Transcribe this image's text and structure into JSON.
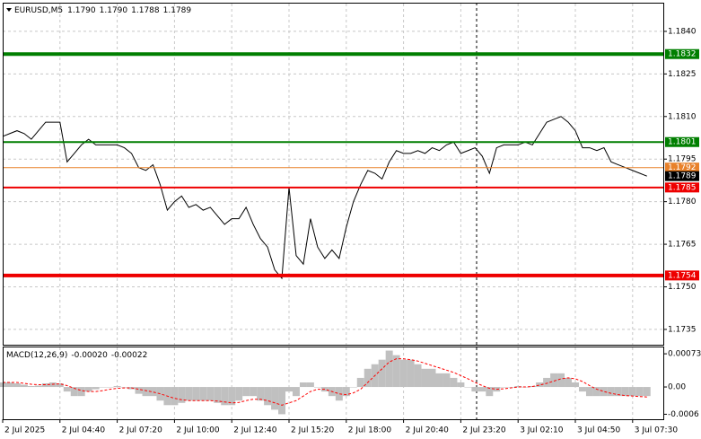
{
  "chart_data": [
    {
      "type": "line",
      "title": "EURUSD,M5",
      "ohlc": [
        "1.1790",
        "1.1790",
        "1.1788",
        "1.1789"
      ],
      "color": "#000000",
      "grid": true,
      "categories": [
        "2 Jul 2025",
        null,
        null,
        null,
        null,
        null,
        null,
        null,
        "2 Jul 04:40",
        null,
        null,
        null,
        null,
        null,
        null,
        null,
        "2 Jul 07:20",
        null,
        null,
        null,
        null,
        null,
        null,
        null,
        "2 Jul 10:00",
        null,
        null,
        null,
        null,
        null,
        null,
        null,
        "2 Jul 12:40",
        null,
        null,
        null,
        null,
        null,
        null,
        null,
        "2 Jul 15:20",
        null,
        null,
        null,
        null,
        null,
        null,
        null,
        "2 Jul 18:00",
        null,
        null,
        null,
        null,
        null,
        null,
        null,
        "2 Jul 20:40",
        null,
        null,
        null,
        null,
        null,
        null,
        null,
        "2 Jul 23:20",
        null,
        null,
        null,
        null,
        null,
        null,
        null,
        "3 Jul 02:10",
        null,
        null,
        null,
        null,
        null,
        null,
        null,
        "3 Jul 04:50",
        null,
        null,
        null,
        null,
        null,
        null,
        null,
        "3 Jul 07:30",
        null,
        null
      ],
      "values": [
        1.1803,
        1.1804,
        1.1805,
        1.1804,
        1.1802,
        1.1805,
        1.1808,
        1.1808,
        1.1808,
        1.1794,
        1.1797,
        1.18,
        1.1802,
        1.18,
        1.18,
        1.18,
        1.18,
        1.1799,
        1.1797,
        1.1792,
        1.1791,
        1.1793,
        1.1786,
        1.1777,
        1.178,
        1.1782,
        1.1778,
        1.1779,
        1.1777,
        1.1778,
        1.1775,
        1.1772,
        1.1774,
        1.1774,
        1.1778,
        1.1772,
        1.1767,
        1.1764,
        1.1756,
        1.1753,
        1.1785,
        1.1761,
        1.1758,
        1.1774,
        1.1764,
        1.176,
        1.1763,
        1.176,
        1.1771,
        1.178,
        1.1786,
        1.1791,
        1.179,
        1.1788,
        1.1794,
        1.1798,
        1.1797,
        1.1797,
        1.1798,
        1.1797,
        1.1799,
        1.1798,
        1.18,
        1.1801,
        1.1797,
        1.1798,
        1.1799,
        1.1796,
        1.179,
        1.1799,
        1.18,
        1.18,
        1.18,
        1.1801,
        1.18,
        1.1804,
        1.1808,
        1.1809,
        1.181,
        1.1808,
        1.1805,
        1.1799,
        1.1799,
        1.1798,
        1.1799,
        1.1794,
        1.1793,
        1.1792,
        1.1791,
        1.179,
        1.1789
      ],
      "ylim": [
        1.17296,
        1.18501
      ],
      "yticks": [
        {
          "value": 1.184,
          "label": "1.1840"
        },
        1.1825,
        {
          "value": 1.181,
          "label": "1.1810"
        },
        1.1795,
        {
          "value": 1.178,
          "label": "1.1780"
        },
        1.1765,
        {
          "value": 1.175,
          "label": "1.1750"
        },
        1.1735
      ],
      "levels": [
        {
          "value": 1.1832,
          "color": "#007f00",
          "style": "bold"
        },
        {
          "value": 1.1801,
          "color": "#007f00",
          "style": "normal"
        },
        {
          "value": 1.1792,
          "color": "#e8812a",
          "style": "thin"
        },
        {
          "value": 1.1785,
          "color": "#ee0000",
          "style": "normal"
        },
        {
          "value": 1.1754,
          "color": "#ee0000",
          "style": "bold"
        }
      ],
      "last_price": {
        "value": 1.1789,
        "color": "#000000"
      }
    },
    {
      "type": "macd",
      "title": "MACD(12,26,9)",
      "readout": [
        "-0.00020",
        "-0.00022"
      ],
      "histogram": {
        "color": "#c0c0c0",
        "values": [
          0.0001,
          0.0001,
          8e-05,
          5e-05,
          2e-05,
          3e-05,
          8e-05,
          0.0001,
          8e-05,
          -0.0001,
          -0.0002,
          -0.0002,
          -0.0001,
          -5e-05,
          0,
          0,
          2e-05,
          0,
          -5e-05,
          -0.00015,
          -0.0002,
          -0.0002,
          -0.0003,
          -0.0004,
          -0.0004,
          -0.00035,
          -0.0003,
          -0.0003,
          -0.0003,
          -0.0003,
          -0.00035,
          -0.0004,
          -0.0004,
          -0.0003,
          -0.0002,
          -0.0002,
          -0.0003,
          -0.0004,
          -0.0005,
          -0.0006,
          -0.0001,
          -0.0002,
          0.0001,
          0.0001,
          0,
          -0.0001,
          -0.0002,
          -0.0003,
          -0.0002,
          0,
          0.0002,
          0.0004,
          0.0005,
          0.0006,
          0.0008,
          0.0007,
          0.0006,
          0.0006,
          0.0005,
          0.0004,
          0.0004,
          0.0003,
          0.0003,
          0.0002,
          0.0001,
          0,
          -0.0001,
          -0.0001,
          -0.0002,
          -0.0001,
          0,
          0,
          2e-05,
          0,
          2e-05,
          0.0001,
          0.0002,
          0.0003,
          0.0003,
          0.0002,
          0.0001,
          -0.0001,
          -0.0002,
          -0.0002,
          -0.0002,
          -0.0002,
          -0.0002,
          -0.0002,
          -0.0002,
          -0.0002,
          -0.0002
        ]
      },
      "signal": {
        "color": "#ff0000",
        "values": [
          0.0001,
          0.0001,
          0.0001,
          8e-05,
          6e-05,
          5e-05,
          5e-05,
          6e-05,
          7e-05,
          3e-05,
          -3e-05,
          -8e-05,
          -0.0001,
          -0.0001,
          -8e-05,
          -5e-05,
          -3e-05,
          -2e-05,
          -2e-05,
          -5e-05,
          -8e-05,
          -0.00011,
          -0.00015,
          -0.0002,
          -0.00025,
          -0.00028,
          -0.0003,
          -0.0003,
          -0.0003,
          -0.0003,
          -0.00031,
          -0.00033,
          -0.00035,
          -0.00034,
          -0.0003,
          -0.00027,
          -0.00027,
          -0.0003,
          -0.00035,
          -0.0004,
          -0.00035,
          -0.0003,
          -0.0002,
          -0.0001,
          -5e-05,
          -5e-05,
          -0.0001,
          -0.00015,
          -0.00017,
          -0.00013,
          -5e-05,
          0.0001,
          0.00025,
          0.0004,
          0.00055,
          0.00062,
          0.00062,
          0.0006,
          0.00057,
          0.00052,
          0.00047,
          0.00042,
          0.00037,
          0.00032,
          0.00025,
          0.00018,
          0.0001,
          3e-05,
          -3e-05,
          -5e-05,
          -4e-05,
          -2e-05,
          0,
          0,
          1e-05,
          4e-05,
          8e-05,
          0.00013,
          0.00018,
          0.0002,
          0.00018,
          0.00012,
          3e-05,
          -5e-05,
          -0.0001,
          -0.00014,
          -0.00017,
          -0.00019,
          -0.0002,
          -0.00021,
          -0.00022
        ]
      },
      "ylim": [
        -0.00071,
        0.00087
      ],
      "yticks": [
        0.00073,
        {
          "value": 0,
          "label": "0.00"
        },
        -0.0006
      ]
    }
  ]
}
